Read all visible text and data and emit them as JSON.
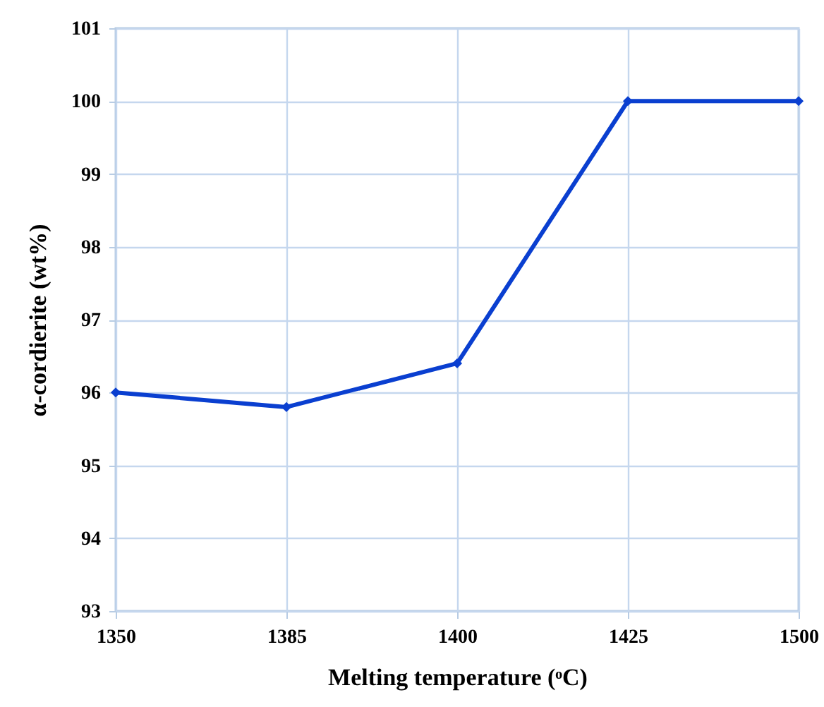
{
  "chart_data": {
    "type": "line",
    "xlabel": "Melting temperature (ᵒC)",
    "ylabel": "α-cordierite (wt%)",
    "categories": [
      "1350",
      "1385",
      "1400",
      "1425",
      "1500"
    ],
    "series": [
      {
        "color": "#0a3fd0",
        "values": [
          96,
          95.8,
          96.4,
          100,
          100
        ]
      }
    ],
    "ylim": [
      93,
      101
    ],
    "yticks": [
      93,
      94,
      95,
      96,
      97,
      98,
      99,
      100,
      101
    ],
    "grid": true,
    "marker": "diamond",
    "line_style": "solid"
  }
}
